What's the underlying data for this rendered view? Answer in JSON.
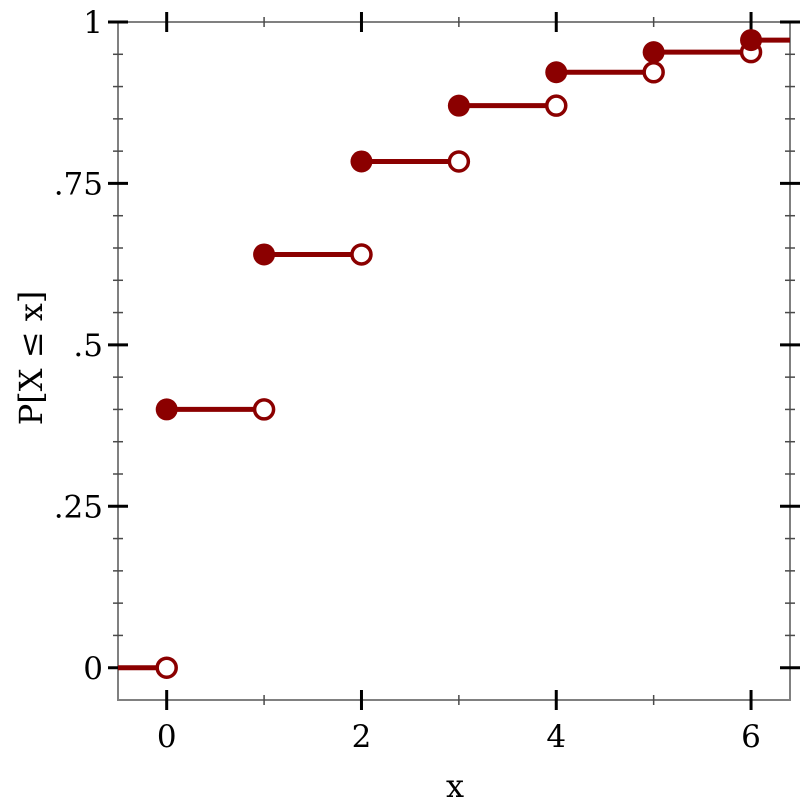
{
  "chart_data": {
    "type": "line",
    "subtype": "step-function-cdf",
    "title": "",
    "xlabel": "x",
    "ylabel": "P[X ≤ x]",
    "xlim": [
      -0.5,
      6.4
    ],
    "ylim": [
      -0.05,
      1.0
    ],
    "grid": false,
    "legend": false,
    "x_major_ticks": [
      0,
      2,
      4,
      6
    ],
    "x_major_tick_labels": [
      "0",
      "2",
      "4",
      "6"
    ],
    "x_minor_ticks": [
      1,
      3,
      5
    ],
    "y_major_ticks": [
      0,
      0.25,
      0.5,
      0.75,
      1
    ],
    "y_major_tick_labels": [
      "0",
      ".25",
      ".5",
      ".75",
      "1"
    ],
    "y_minor_tick_step": 0.05,
    "colors": {
      "series": "#8b0000",
      "frame": "#808080",
      "major_tick": "#000000",
      "minor_tick": "#4a4a4a",
      "text": "#000000",
      "open_marker_fill": "#ffffff",
      "background": "#ffffff"
    },
    "series_points": [
      {
        "x": 0,
        "cdf": 0.4
      },
      {
        "x": 1,
        "cdf": 0.64
      },
      {
        "x": 2,
        "cdf": 0.784
      },
      {
        "x": 3,
        "cdf": 0.8704
      },
      {
        "x": 4,
        "cdf": 0.9222
      },
      {
        "x": 5,
        "cdf": 0.9533
      },
      {
        "x": 6,
        "cdf": 0.972
      }
    ],
    "steps": [
      {
        "from_x": -0.5,
        "to_x": 0,
        "y": 0.0,
        "dot_at_start": false,
        "open_circle_at_end": true
      },
      {
        "from_x": 0,
        "to_x": 1,
        "y": 0.4,
        "dot_at_start": true,
        "open_circle_at_end": true
      },
      {
        "from_x": 1,
        "to_x": 2,
        "y": 0.64,
        "dot_at_start": true,
        "open_circle_at_end": true
      },
      {
        "from_x": 2,
        "to_x": 3,
        "y": 0.784,
        "dot_at_start": true,
        "open_circle_at_end": true
      },
      {
        "from_x": 3,
        "to_x": 4,
        "y": 0.8704,
        "dot_at_start": true,
        "open_circle_at_end": true
      },
      {
        "from_x": 4,
        "to_x": 5,
        "y": 0.9222,
        "dot_at_start": true,
        "open_circle_at_end": true
      },
      {
        "from_x": 5,
        "to_x": 6,
        "y": 0.9533,
        "dot_at_start": true,
        "open_circle_at_end": true
      },
      {
        "from_x": 6,
        "to_x": 6.4,
        "y": 0.972,
        "dot_at_start": true,
        "open_circle_at_end": false
      }
    ]
  }
}
